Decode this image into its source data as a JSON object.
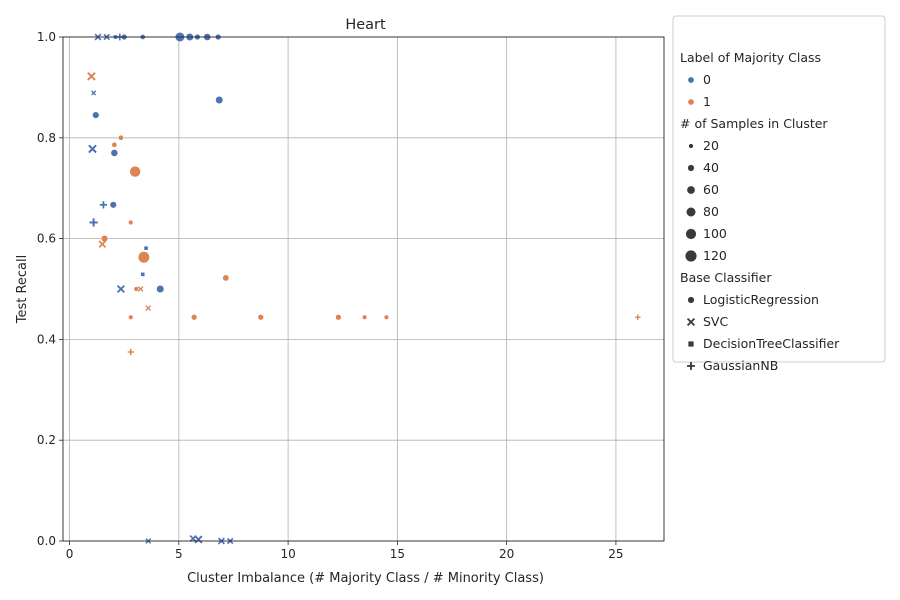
{
  "chart_data": {
    "type": "scatter",
    "title": "Heart",
    "xlabel": "Cluster Imbalance (# Majority Class / # Minority Class)",
    "ylabel": "Test Recall",
    "xlim": [
      -0.3,
      27.2
    ],
    "ylim": [
      0,
      1.0
    ],
    "xticks": [
      0,
      5,
      10,
      15,
      20,
      25
    ],
    "yticks": [
      0.0,
      0.2,
      0.4,
      0.6,
      0.8,
      1.0
    ],
    "xtick_labels": [
      "0",
      "5",
      "10",
      "15",
      "20",
      "25"
    ],
    "ytick_labels": [
      "0.0",
      "0.2",
      "0.4",
      "0.6",
      "0.8",
      "1.0"
    ],
    "grid": true,
    "legend_placement": "outside-right-top",
    "colors": {
      "0": "#4c72b0",
      "1": "#dd8452"
    },
    "legend": {
      "hue_title": "Label of Majority Class",
      "hue_entries": [
        {
          "label": "0",
          "key": "0"
        },
        {
          "label": "1",
          "key": "1"
        }
      ],
      "size_title": "# of Samples in Cluster",
      "size_entries": [
        {
          "label": "20",
          "samples": 20
        },
        {
          "label": "40",
          "samples": 40
        },
        {
          "label": "60",
          "samples": 60
        },
        {
          "label": "80",
          "samples": 80
        },
        {
          "label": "100",
          "samples": 100
        },
        {
          "label": "120",
          "samples": 120
        }
      ],
      "style_title": "Base Classifier",
      "style_entries": [
        {
          "label": "LogisticRegression",
          "marker": "circle"
        },
        {
          "label": "SVC",
          "marker": "x"
        },
        {
          "label": "DecisionTreeClassifier",
          "marker": "square"
        },
        {
          "label": "GaussianNB",
          "marker": "plus"
        }
      ]
    },
    "series": [
      {
        "name": "LogisticRegression",
        "marker": "circle",
        "points": [
          {
            "x": 1.2,
            "y": 0.845,
            "label": "0",
            "samples": 40
          },
          {
            "x": 2.0,
            "y": 0.667,
            "label": "0",
            "samples": 40
          },
          {
            "x": 2.05,
            "y": 0.77,
            "label": "0",
            "samples": 45
          },
          {
            "x": 2.5,
            "y": 1.0,
            "label": "0",
            "samples": 30
          },
          {
            "x": 3.35,
            "y": 1.0,
            "label": "0",
            "samples": 25
          },
          {
            "x": 4.15,
            "y": 0.5,
            "label": "0",
            "samples": 50
          },
          {
            "x": 5.05,
            "y": 1.0,
            "label": "0",
            "samples": 80
          },
          {
            "x": 5.5,
            "y": 1.0,
            "label": "0",
            "samples": 50
          },
          {
            "x": 5.85,
            "y": 1.0,
            "label": "0",
            "samples": 30
          },
          {
            "x": 6.3,
            "y": 1.0,
            "label": "0",
            "samples": 45
          },
          {
            "x": 6.8,
            "y": 1.0,
            "label": "0",
            "samples": 30
          },
          {
            "x": 6.85,
            "y": 0.875,
            "label": "0",
            "samples": 50
          },
          {
            "x": 1.6,
            "y": 0.6,
            "label": "1",
            "samples": 40
          },
          {
            "x": 2.05,
            "y": 0.786,
            "label": "1",
            "samples": 25
          },
          {
            "x": 2.35,
            "y": 0.8,
            "label": "1",
            "samples": 25
          },
          {
            "x": 2.8,
            "y": 0.632,
            "label": "1",
            "samples": 20
          },
          {
            "x": 2.8,
            "y": 0.444,
            "label": "1",
            "samples": 20
          },
          {
            "x": 3.0,
            "y": 0.733,
            "label": "1",
            "samples": 105
          },
          {
            "x": 3.05,
            "y": 0.5,
            "label": "1",
            "samples": 20
          },
          {
            "x": 3.4,
            "y": 0.563,
            "label": "1",
            "samples": 115
          },
          {
            "x": 5.7,
            "y": 0.444,
            "label": "1",
            "samples": 30
          },
          {
            "x": 7.15,
            "y": 0.522,
            "label": "1",
            "samples": 35
          },
          {
            "x": 8.75,
            "y": 0.444,
            "label": "1",
            "samples": 30
          },
          {
            "x": 12.3,
            "y": 0.444,
            "label": "1",
            "samples": 30
          },
          {
            "x": 13.5,
            "y": 0.444,
            "label": "1",
            "samples": 20
          },
          {
            "x": 14.5,
            "y": 0.444,
            "label": "1",
            "samples": 20
          }
        ]
      },
      {
        "name": "SVC",
        "marker": "x",
        "points": [
          {
            "x": 1.05,
            "y": 0.778,
            "label": "0",
            "samples": 45
          },
          {
            "x": 1.1,
            "y": 0.889,
            "label": "0",
            "samples": 15
          },
          {
            "x": 1.3,
            "y": 1.0,
            "label": "0",
            "samples": 30
          },
          {
            "x": 1.7,
            "y": 1.0,
            "label": "0",
            "samples": 25
          },
          {
            "x": 2.35,
            "y": 0.5,
            "label": "0",
            "samples": 40
          },
          {
            "x": 3.6,
            "y": 0.0,
            "label": "0",
            "samples": 20
          },
          {
            "x": 5.65,
            "y": 0.005,
            "label": "0",
            "samples": 30
          },
          {
            "x": 5.9,
            "y": 0.003,
            "label": "0",
            "samples": 40
          },
          {
            "x": 6.95,
            "y": 0.0,
            "label": "0",
            "samples": 30
          },
          {
            "x": 7.35,
            "y": 0.0,
            "label": "0",
            "samples": 25
          },
          {
            "x": 1.0,
            "y": 0.922,
            "label": "1",
            "samples": 45
          },
          {
            "x": 1.5,
            "y": 0.589,
            "label": "1",
            "samples": 35
          },
          {
            "x": 3.25,
            "y": 0.5,
            "label": "1",
            "samples": 20
          },
          {
            "x": 3.6,
            "y": 0.462,
            "label": "1",
            "samples": 20
          }
        ]
      },
      {
        "name": "DecisionTreeClassifier",
        "marker": "square",
        "points": [
          {
            "x": 2.1,
            "y": 1.0,
            "label": "0",
            "samples": 20
          },
          {
            "x": 3.35,
            "y": 0.529,
            "label": "0",
            "samples": 20
          },
          {
            "x": 3.5,
            "y": 0.581,
            "label": "0",
            "samples": 20
          }
        ]
      },
      {
        "name": "GaussianNB",
        "marker": "plus",
        "points": [
          {
            "x": 1.1,
            "y": 0.632,
            "label": "0",
            "samples": 45
          },
          {
            "x": 1.55,
            "y": 0.667,
            "label": "0",
            "samples": 35
          },
          {
            "x": 2.3,
            "y": 1.0,
            "label": "0",
            "samples": 30
          },
          {
            "x": 2.8,
            "y": 0.375,
            "label": "1",
            "samples": 25
          },
          {
            "x": 26.0,
            "y": 0.444,
            "label": "1",
            "samples": 20
          }
        ]
      }
    ]
  }
}
